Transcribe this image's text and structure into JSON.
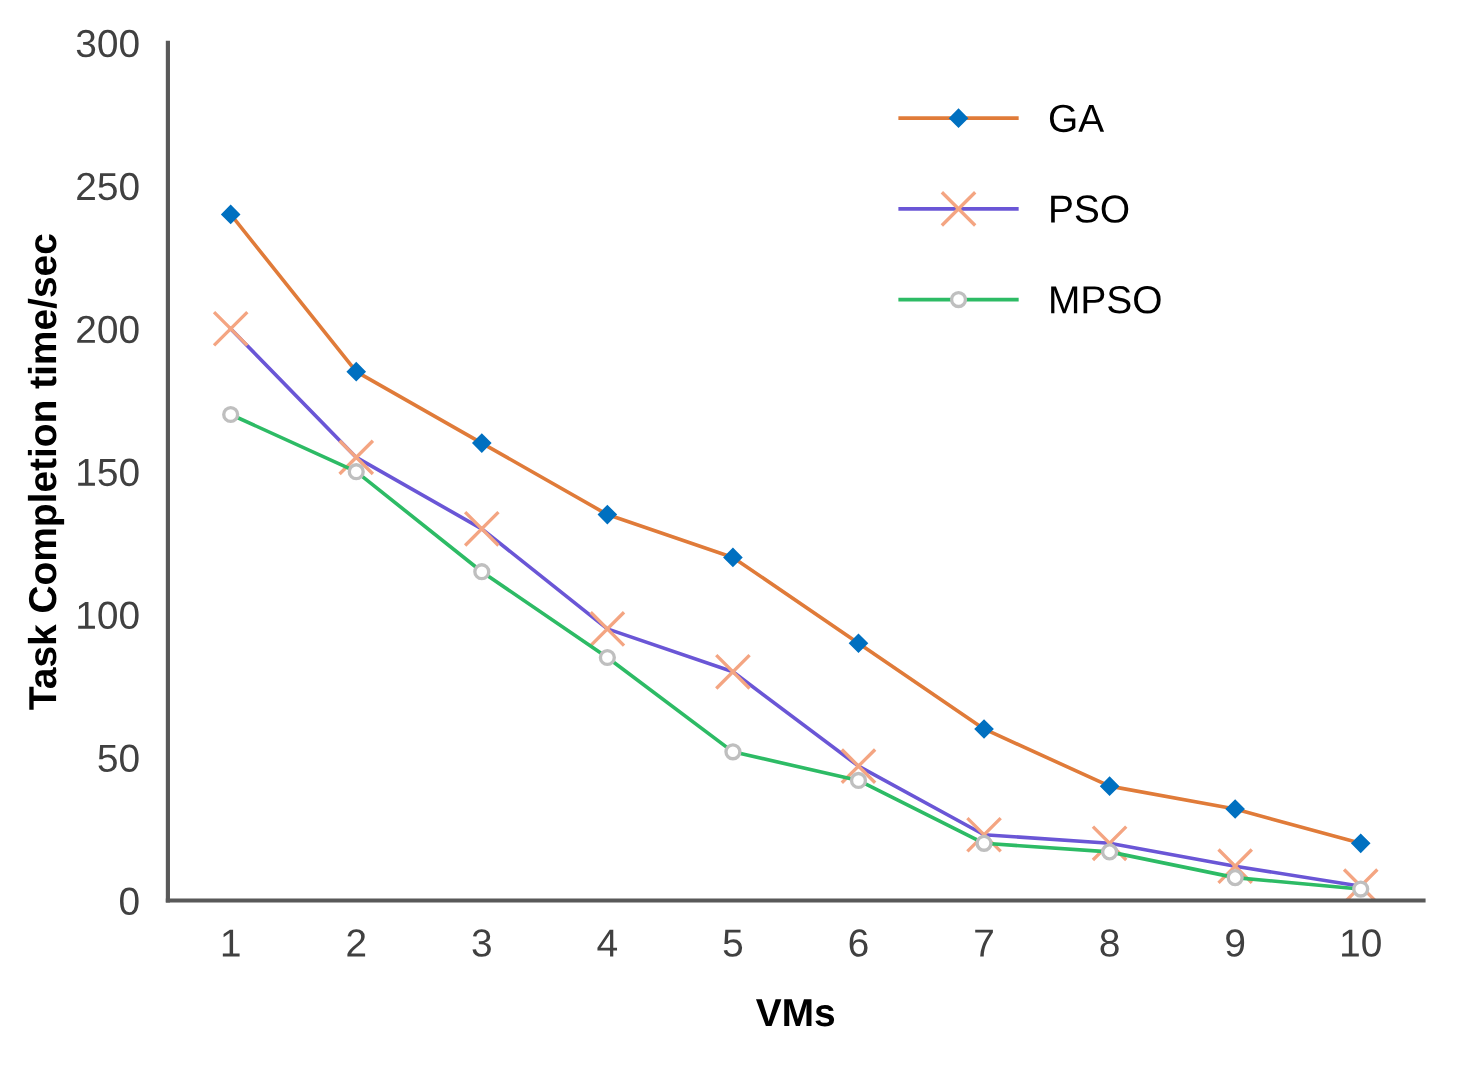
{
  "chart_data": {
    "type": "line",
    "xlabel": "VMs",
    "ylabel": "Task Completion time/sec",
    "categories": [
      "1",
      "2",
      "3",
      "4",
      "5",
      "6",
      "7",
      "8",
      "9",
      "10"
    ],
    "series": [
      {
        "name": "GA",
        "color": "#e07b39",
        "marker": "diamond",
        "values": [
          240,
          185,
          160,
          135,
          120,
          90,
          60,
          40,
          32,
          20
        ]
      },
      {
        "name": "PSO",
        "color": "#6a56d6",
        "marker": "cross",
        "values": [
          200,
          155,
          130,
          95,
          80,
          47,
          23,
          20,
          12,
          5
        ]
      },
      {
        "name": "MPSO",
        "color": "#2dbb65",
        "marker": "circle",
        "values": [
          170,
          150,
          115,
          85,
          52,
          42,
          20,
          17,
          8,
          4
        ]
      }
    ],
    "ylim": [
      0,
      300
    ],
    "yticks": [
      0,
      50,
      100,
      150,
      200,
      250,
      300
    ],
    "legend": "top right",
    "grid": false
  }
}
